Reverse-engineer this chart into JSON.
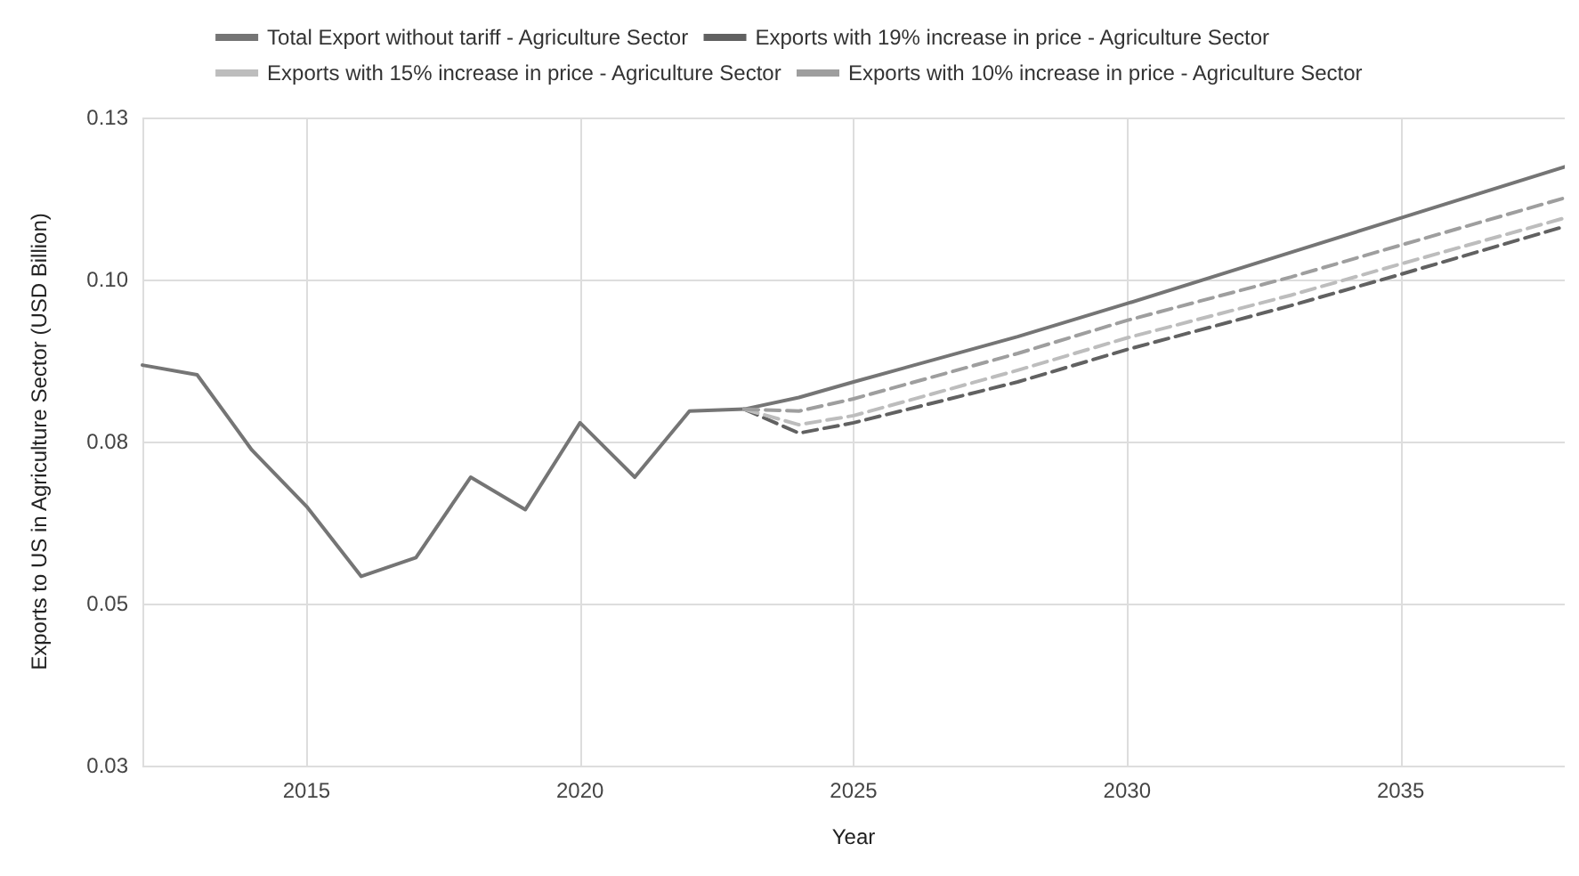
{
  "chart_data": {
    "type": "line",
    "xlabel": "Year",
    "ylabel": "Exports to US in Agriculture Sector (USD Billion)",
    "xlim": [
      2012,
      2038
    ],
    "xticks": [
      2015,
      2020,
      2025,
      2030,
      2035
    ],
    "ylim": [
      0.025,
      0.125
    ],
    "yticks": [
      {
        "value": 0.025,
        "label": "0.03"
      },
      {
        "value": 0.05,
        "label": "0.05"
      },
      {
        "value": 0.075,
        "label": "0.08"
      },
      {
        "value": 0.1,
        "label": "0.10"
      },
      {
        "value": 0.125,
        "label": "0.13"
      }
    ],
    "grid": true,
    "legend": "top",
    "marker": "none",
    "series": [
      {
        "name": "Total Export without tariff - Agriculture Sector",
        "color": "#757575",
        "line_style": "solid",
        "x": [
          2012,
          2013,
          2014,
          2015,
          2016,
          2017,
          2018,
          2019,
          2020,
          2021,
          2022,
          2023,
          2024,
          2025,
          2028,
          2030,
          2033,
          2035,
          2038
        ],
        "values": [
          0.0868,
          0.0853,
          0.0737,
          0.065,
          0.0542,
          0.0571,
          0.0695,
          0.0645,
          0.0779,
          0.0695,
          0.0797,
          0.08,
          0.0818,
          0.0842,
          0.0912,
          0.0963,
          0.1042,
          0.1095,
          0.1174
        ]
      },
      {
        "name": "Exports with 19% increase in price - Agriculture Sector",
        "color": "#616161",
        "line_style": "dashed",
        "x": [
          2023,
          2024,
          2025,
          2028,
          2030,
          2033,
          2035,
          2038
        ],
        "values": [
          0.08,
          0.0763,
          0.0779,
          0.0842,
          0.0892,
          0.096,
          0.1008,
          0.1082
        ]
      },
      {
        "name": "Exports with 15% increase in price - Agriculture Sector",
        "color": "#bdbdbd",
        "line_style": "dashed",
        "x": [
          2023,
          2024,
          2025,
          2028,
          2030,
          2033,
          2035,
          2038
        ],
        "values": [
          0.08,
          0.0776,
          0.079,
          0.086,
          0.091,
          0.0976,
          0.1024,
          0.1095
        ]
      },
      {
        "name": "Exports with 10% increase in price - Agriculture Sector",
        "color": "#9e9e9e",
        "line_style": "dashed",
        "x": [
          2023,
          2024,
          2025,
          2028,
          2030,
          2033,
          2035,
          2038
        ],
        "values": [
          0.08,
          0.0797,
          0.0816,
          0.0886,
          0.0937,
          0.1004,
          0.1053,
          0.1126
        ]
      }
    ]
  }
}
